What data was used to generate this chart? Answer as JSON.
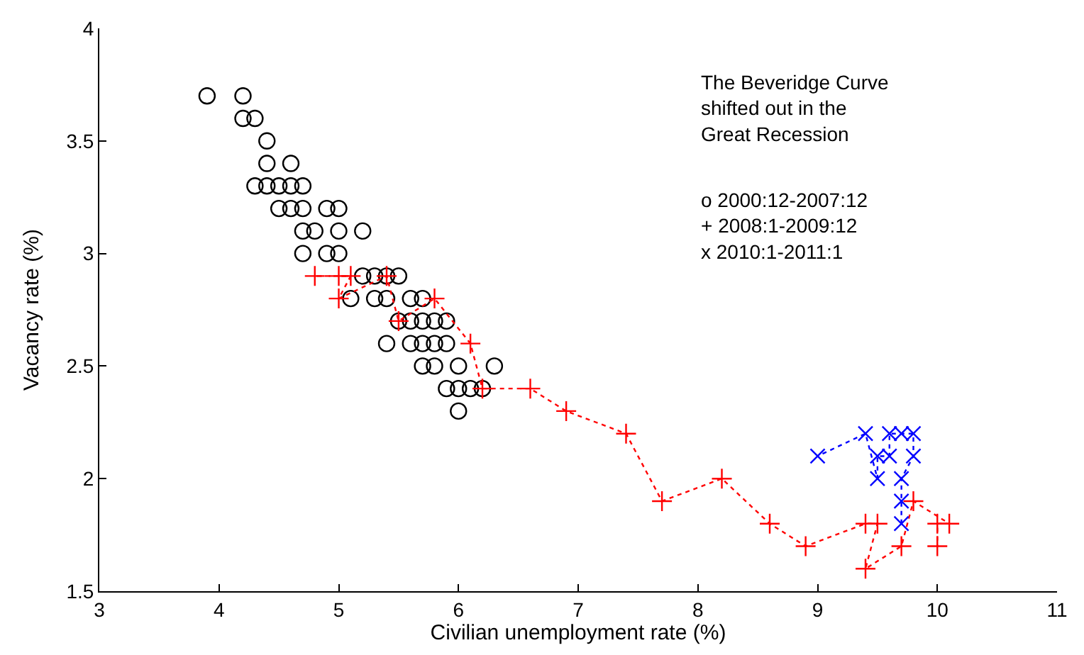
{
  "chart_data": {
    "type": "scatter",
    "xlabel": "Civilian unemployment rate (%)",
    "ylabel": "Vacancy rate (%)",
    "xlim": [
      3,
      11
    ],
    "xticks": [
      3,
      4,
      5,
      6,
      7,
      8,
      9,
      10,
      11
    ],
    "ylim": [
      1.5,
      4
    ],
    "yticks": [
      1.5,
      2,
      2.5,
      3,
      3.5,
      4
    ],
    "annotations": [
      "The Beveridge Curve\nshifted out in the\nGreat Recession",
      "o 2000:12-2007:12\n+ 2008:1-2009:12\nx 2010:1-2011:1"
    ],
    "series": [
      {
        "marker": "circle",
        "color": "#000000",
        "x": [
          3.9,
          4.2,
          4.2,
          4.3,
          4.4,
          4.4,
          4.6,
          4.3,
          4.4,
          4.5,
          4.6,
          4.7,
          4.5,
          4.6,
          4.7,
          4.9,
          5.0,
          4.7,
          4.8,
          5.0,
          5.2,
          4.7,
          4.9,
          5.0,
          5.2,
          5.3,
          5.4,
          5.5,
          5.1,
          5.3,
          5.4,
          5.6,
          5.7,
          5.5,
          5.6,
          5.7,
          5.8,
          5.9,
          5.4,
          5.6,
          5.7,
          5.8,
          5.9,
          5.7,
          5.8,
          6.0,
          6.3,
          5.9,
          6.0,
          6.1,
          6.2,
          6.0
        ],
        "values": [
          3.7,
          3.7,
          3.6,
          3.6,
          3.5,
          3.4,
          3.4,
          3.3,
          3.3,
          3.3,
          3.3,
          3.3,
          3.2,
          3.2,
          3.2,
          3.2,
          3.2,
          3.1,
          3.1,
          3.1,
          3.1,
          3.0,
          3.0,
          3.0,
          2.9,
          2.9,
          2.9,
          2.9,
          2.8,
          2.8,
          2.8,
          2.8,
          2.8,
          2.7,
          2.7,
          2.7,
          2.7,
          2.7,
          2.6,
          2.6,
          2.6,
          2.6,
          2.6,
          2.5,
          2.5,
          2.5,
          2.5,
          2.4,
          2.4,
          2.4,
          2.4,
          2.3
        ]
      },
      {
        "type": "line",
        "marker": "cross",
        "line_style": "dotted",
        "color": "#ff0000",
        "x": [
          5.0,
          4.8,
          5.1,
          5.0,
          5.4,
          5.5,
          5.8,
          6.1,
          6.2,
          6.6,
          6.9,
          7.4,
          7.7,
          8.2,
          8.6,
          8.9,
          9.4,
          9.5,
          9.4,
          9.7,
          9.8,
          10.1,
          10.0,
          10.0
        ],
        "values": [
          2.9,
          2.9,
          2.9,
          2.8,
          2.9,
          2.7,
          2.8,
          2.6,
          2.4,
          2.4,
          2.3,
          2.2,
          1.9,
          2.0,
          1.8,
          1.7,
          1.8,
          1.8,
          1.6,
          1.7,
          1.9,
          1.8,
          1.8,
          1.7
        ]
      },
      {
        "type": "line",
        "marker": "x",
        "line_style": "dotted",
        "color": "#0000ff",
        "x": [
          9.7,
          9.7,
          9.7,
          9.8,
          9.8,
          9.7,
          9.6,
          9.6,
          9.5,
          9.5,
          9.4,
          9.0
        ],
        "values": [
          1.8,
          1.9,
          2.0,
          2.1,
          2.2,
          2.2,
          2.2,
          2.1,
          2.1,
          2.0,
          2.2,
          2.1
        ]
      }
    ]
  }
}
